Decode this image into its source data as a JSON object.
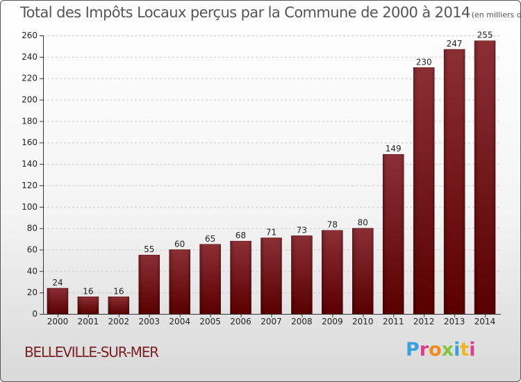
{
  "chart_data": {
    "type": "bar",
    "title": "Total des Impôts Locaux perçus par la Commune de 2000 à 2014",
    "unit_label": "(en milliers d'€)",
    "categories": [
      "2000",
      "2001",
      "2002",
      "2003",
      "2004",
      "2005",
      "2006",
      "2007",
      "2008",
      "2009",
      "2010",
      "2011",
      "2012",
      "2013",
      "2014"
    ],
    "values": [
      24,
      16,
      16,
      55,
      60,
      65,
      68,
      71,
      73,
      78,
      80,
      149,
      230,
      247,
      255
    ],
    "ylim": [
      0,
      260
    ],
    "yticks": [
      0,
      20,
      40,
      60,
      80,
      100,
      120,
      140,
      160,
      180,
      200,
      220,
      240,
      260
    ],
    "grid": true,
    "xlabel": "",
    "ylabel": "",
    "bar_color": "#8b2a2f"
  },
  "commune": "BELLEVILLE-SUR-MER",
  "logo": {
    "letters": [
      "P",
      "r",
      "o",
      "x",
      "i",
      "t",
      "i"
    ]
  }
}
